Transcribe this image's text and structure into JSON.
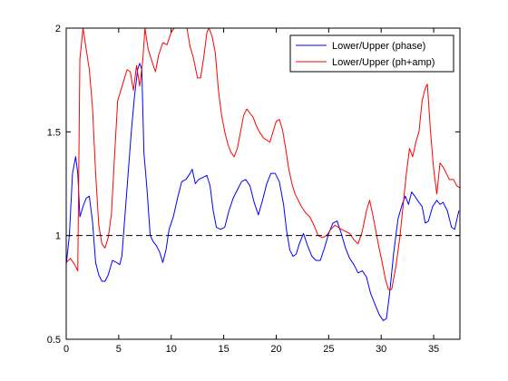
{
  "chart_data": {
    "type": "line",
    "title": "",
    "xlabel": "",
    "ylabel": "",
    "xlim": [
      0,
      37.5
    ],
    "ylim": [
      0.5,
      2
    ],
    "xticks": [
      0,
      5,
      10,
      15,
      20,
      25,
      30,
      35
    ],
    "yticks": [
      0.5,
      1,
      1.5,
      2
    ],
    "xtick_labels": [
      "0",
      "5",
      "10",
      "15",
      "20",
      "25",
      "30",
      "35"
    ],
    "ytick_labels": [
      "0.5",
      "1",
      "1.5",
      "2"
    ],
    "grid": false,
    "legend_position": "top-right",
    "reference_line": {
      "y": 1,
      "style": "dashed",
      "color": "#000000"
    },
    "series": [
      {
        "name": "Lower/Upper (phase)",
        "color": "#0000ff",
        "points": [
          [
            0,
            0.86
          ],
          [
            0.3,
            1.0
          ],
          [
            0.6,
            1.3
          ],
          [
            0.9,
            1.38
          ],
          [
            1.1,
            1.3
          ],
          [
            1.3,
            1.09
          ],
          [
            1.6,
            1.14
          ],
          [
            1.9,
            1.18
          ],
          [
            2.2,
            1.19
          ],
          [
            2.5,
            1.07
          ],
          [
            2.8,
            0.87
          ],
          [
            3.1,
            0.81
          ],
          [
            3.4,
            0.78
          ],
          [
            3.7,
            0.78
          ],
          [
            4.0,
            0.81
          ],
          [
            4.4,
            0.88
          ],
          [
            4.8,
            0.87
          ],
          [
            5.1,
            0.86
          ],
          [
            5.3,
            0.9
          ],
          [
            5.6,
            1.1
          ],
          [
            5.9,
            1.3
          ],
          [
            6.2,
            1.5
          ],
          [
            6.5,
            1.67
          ],
          [
            6.8,
            1.8
          ],
          [
            7.0,
            1.83
          ],
          [
            7.2,
            1.8
          ],
          [
            7.4,
            1.4
          ],
          [
            7.7,
            1.22
          ],
          [
            8.0,
            1.0
          ],
          [
            8.3,
            0.97
          ],
          [
            8.6,
            0.95
          ],
          [
            8.9,
            0.92
          ],
          [
            9.2,
            0.87
          ],
          [
            9.5,
            0.93
          ],
          [
            9.8,
            1.03
          ],
          [
            10.2,
            1.09
          ],
          [
            10.6,
            1.18
          ],
          [
            11.0,
            1.26
          ],
          [
            11.4,
            1.27
          ],
          [
            11.8,
            1.3
          ],
          [
            12.0,
            1.32
          ],
          [
            12.3,
            1.25
          ],
          [
            12.6,
            1.27
          ],
          [
            13.0,
            1.28
          ],
          [
            13.4,
            1.29
          ],
          [
            13.7,
            1.24
          ],
          [
            14.0,
            1.12
          ],
          [
            14.3,
            1.04
          ],
          [
            14.7,
            1.03
          ],
          [
            15.1,
            1.04
          ],
          [
            15.5,
            1.12
          ],
          [
            15.9,
            1.18
          ],
          [
            16.3,
            1.22
          ],
          [
            16.7,
            1.26
          ],
          [
            17.1,
            1.27
          ],
          [
            17.5,
            1.24
          ],
          [
            17.9,
            1.16
          ],
          [
            18.3,
            1.1
          ],
          [
            18.7,
            1.17
          ],
          [
            19.1,
            1.25
          ],
          [
            19.5,
            1.3
          ],
          [
            19.9,
            1.3
          ],
          [
            20.3,
            1.26
          ],
          [
            20.7,
            1.15
          ],
          [
            21.0,
            1.02
          ],
          [
            21.3,
            0.93
          ],
          [
            21.6,
            0.9
          ],
          [
            21.9,
            0.91
          ],
          [
            22.2,
            0.96
          ],
          [
            22.6,
            1.01
          ],
          [
            23.0,
            0.95
          ],
          [
            23.4,
            0.9
          ],
          [
            23.8,
            0.88
          ],
          [
            24.2,
            0.88
          ],
          [
            24.6,
            0.94
          ],
          [
            25.0,
            1.01
          ],
          [
            25.4,
            1.06
          ],
          [
            25.8,
            1.07
          ],
          [
            26.2,
            1.01
          ],
          [
            26.6,
            0.94
          ],
          [
            27.0,
            0.89
          ],
          [
            27.4,
            0.86
          ],
          [
            27.8,
            0.82
          ],
          [
            28.2,
            0.83
          ],
          [
            28.6,
            0.8
          ],
          [
            29.0,
            0.72
          ],
          [
            29.4,
            0.67
          ],
          [
            29.8,
            0.62
          ],
          [
            30.2,
            0.59
          ],
          [
            30.5,
            0.6
          ],
          [
            30.8,
            0.72
          ],
          [
            31.2,
            0.92
          ],
          [
            31.6,
            1.08
          ],
          [
            32.0,
            1.15
          ],
          [
            32.3,
            1.19
          ],
          [
            32.6,
            1.15
          ],
          [
            32.9,
            1.21
          ],
          [
            33.2,
            1.19
          ],
          [
            33.6,
            1.16
          ],
          [
            33.9,
            1.14
          ],
          [
            34.2,
            1.06
          ],
          [
            34.5,
            1.07
          ],
          [
            34.9,
            1.14
          ],
          [
            35.3,
            1.17
          ],
          [
            35.6,
            1.15
          ],
          [
            35.9,
            1.16
          ],
          [
            36.3,
            1.12
          ],
          [
            36.7,
            1.04
          ],
          [
            37.0,
            1.03
          ],
          [
            37.4,
            1.12
          ]
        ]
      },
      {
        "name": "Lower/Upper (ph+amp)",
        "color": "#ff0000",
        "points": [
          [
            0,
            0.87
          ],
          [
            0.4,
            0.89
          ],
          [
            0.8,
            0.86
          ],
          [
            1.1,
            0.83
          ],
          [
            1.3,
            1.85
          ],
          [
            1.6,
            2.0
          ],
          [
            1.9,
            1.9
          ],
          [
            2.2,
            1.8
          ],
          [
            2.5,
            1.62
          ],
          [
            2.8,
            1.3
          ],
          [
            3.1,
            1.05
          ],
          [
            3.4,
            0.96
          ],
          [
            3.7,
            0.94
          ],
          [
            4.0,
            0.99
          ],
          [
            4.3,
            1.1
          ],
          [
            4.6,
            1.38
          ],
          [
            4.9,
            1.65
          ],
          [
            5.2,
            1.7
          ],
          [
            5.5,
            1.75
          ],
          [
            5.8,
            1.8
          ],
          [
            6.1,
            1.79
          ],
          [
            6.4,
            1.7
          ],
          [
            6.7,
            1.82
          ],
          [
            7.0,
            1.72
          ],
          [
            7.3,
            1.85
          ],
          [
            7.5,
            2.0
          ],
          [
            7.8,
            1.9
          ],
          [
            8.1,
            1.85
          ],
          [
            8.5,
            1.79
          ],
          [
            8.8,
            1.87
          ],
          [
            9.2,
            1.93
          ],
          [
            9.6,
            1.92
          ],
          [
            10.0,
            1.98
          ],
          [
            10.3,
            2.0
          ],
          [
            11.5,
            2.0
          ],
          [
            11.8,
            1.91
          ],
          [
            12.1,
            1.86
          ],
          [
            12.5,
            1.76
          ],
          [
            12.8,
            1.76
          ],
          [
            13.1,
            1.86
          ],
          [
            13.4,
            1.98
          ],
          [
            13.6,
            2.0
          ],
          [
            13.9,
            1.96
          ],
          [
            14.2,
            1.88
          ],
          [
            14.5,
            1.7
          ],
          [
            14.8,
            1.58
          ],
          [
            15.1,
            1.5
          ],
          [
            15.4,
            1.44
          ],
          [
            15.7,
            1.4
          ],
          [
            16.0,
            1.38
          ],
          [
            16.3,
            1.42
          ],
          [
            16.6,
            1.5
          ],
          [
            16.9,
            1.58
          ],
          [
            17.2,
            1.61
          ],
          [
            17.5,
            1.59
          ],
          [
            17.8,
            1.57
          ],
          [
            18.1,
            1.53
          ],
          [
            18.4,
            1.5
          ],
          [
            18.8,
            1.47
          ],
          [
            19.1,
            1.46
          ],
          [
            19.4,
            1.45
          ],
          [
            19.7,
            1.5
          ],
          [
            20.0,
            1.55
          ],
          [
            20.3,
            1.56
          ],
          [
            20.6,
            1.51
          ],
          [
            20.9,
            1.42
          ],
          [
            21.2,
            1.32
          ],
          [
            21.5,
            1.25
          ],
          [
            21.8,
            1.2
          ],
          [
            22.1,
            1.17
          ],
          [
            22.4,
            1.14
          ],
          [
            22.8,
            1.11
          ],
          [
            23.2,
            1.09
          ],
          [
            23.6,
            1.05
          ],
          [
            24.0,
            1.0
          ],
          [
            24.4,
            0.99
          ],
          [
            24.8,
            1.0
          ],
          [
            25.2,
            1.03
          ],
          [
            25.6,
            1.05
          ],
          [
            25.9,
            1.04
          ],
          [
            26.2,
            1.03
          ],
          [
            26.6,
            1.02
          ],
          [
            27.0,
            1.01
          ],
          [
            27.4,
            0.98
          ],
          [
            27.8,
            0.96
          ],
          [
            28.2,
            1.02
          ],
          [
            28.6,
            1.12
          ],
          [
            28.9,
            1.17
          ],
          [
            29.2,
            1.1
          ],
          [
            29.5,
            1.02
          ],
          [
            29.8,
            0.94
          ],
          [
            30.1,
            0.87
          ],
          [
            30.4,
            0.79
          ],
          [
            30.7,
            0.74
          ],
          [
            31.0,
            0.74
          ],
          [
            31.4,
            0.85
          ],
          [
            31.8,
            1.0
          ],
          [
            32.1,
            1.15
          ],
          [
            32.4,
            1.3
          ],
          [
            32.7,
            1.42
          ],
          [
            33.0,
            1.38
          ],
          [
            33.3,
            1.45
          ],
          [
            33.6,
            1.5
          ],
          [
            33.9,
            1.65
          ],
          [
            34.2,
            1.71
          ],
          [
            34.4,
            1.73
          ],
          [
            34.7,
            1.5
          ],
          [
            35.0,
            1.32
          ],
          [
            35.3,
            1.2
          ],
          [
            35.6,
            1.35
          ],
          [
            35.9,
            1.33
          ],
          [
            36.2,
            1.3
          ],
          [
            36.5,
            1.27
          ],
          [
            36.9,
            1.27
          ],
          [
            37.2,
            1.24
          ],
          [
            37.5,
            1.23
          ]
        ]
      }
    ]
  }
}
